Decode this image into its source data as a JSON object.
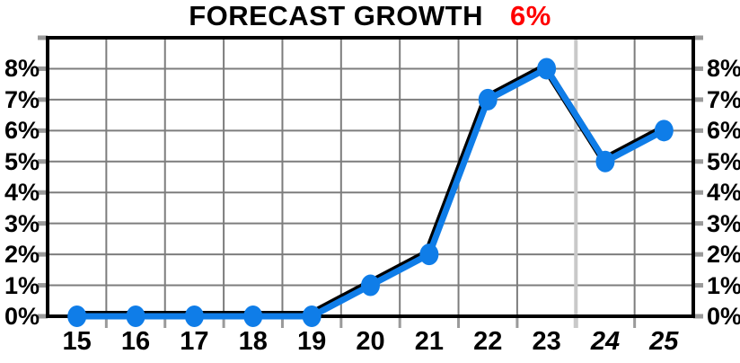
{
  "title": {
    "text": "FORECAST GROWTH",
    "value": "6%",
    "value_color": "#ff0000"
  },
  "chart_data": {
    "type": "line",
    "title": "FORECAST GROWTH 6%",
    "categories": [
      "15",
      "16",
      "17",
      "18",
      "19",
      "20",
      "21",
      "22",
      "23",
      "24",
      "25"
    ],
    "values": [
      0,
      0,
      0,
      0,
      0,
      1,
      2,
      7,
      8,
      5,
      6
    ],
    "y_ticks": [
      "0%",
      "1%",
      "2%",
      "3%",
      "4%",
      "5%",
      "6%",
      "7%",
      "8%"
    ],
    "ylim": [
      0,
      9
    ],
    "y_axis_sides": [
      "left",
      "right"
    ],
    "grid": true,
    "italic_categories": [
      "24",
      "25"
    ],
    "forecast_divider_after": "23",
    "line_color": "#0f7de8",
    "marker_color": "#0f7de8",
    "line_shadow_color": "#000000",
    "grid_color": "#7d7d7d",
    "frame_color": "#000000",
    "divider_color": "#c9c9c9",
    "tick_color": "#9a9a9a",
    "background": "#ffffff"
  }
}
